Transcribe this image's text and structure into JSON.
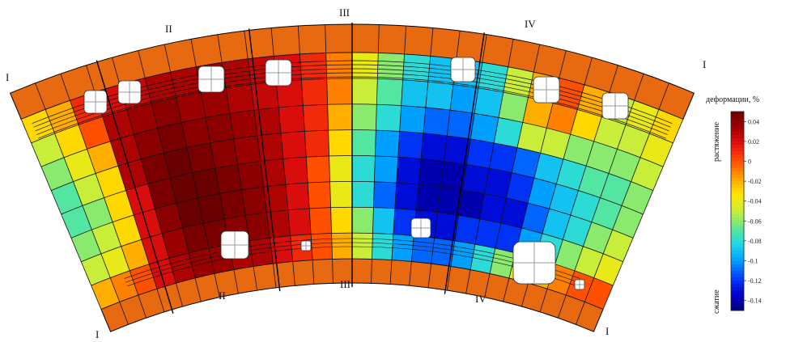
{
  "section_labels": {
    "I": "I",
    "II": "II",
    "III": "III",
    "IV": "IV"
  },
  "colorbar": {
    "title": "деформации, %",
    "top_side_label": "растяжение",
    "bottom_side_label": "сжатие",
    "min": -0.15,
    "max": 0.05,
    "ticks": [
      "0.04",
      "0.02",
      "0",
      "-0.02",
      "-0.04",
      "-0.06",
      "-0.08",
      "-0.1",
      "-0.12",
      "-0.14"
    ],
    "tick_values": [
      0.04,
      0.02,
      0,
      -0.02,
      -0.04,
      -0.06,
      -0.08,
      -0.1,
      -0.12,
      -0.14
    ],
    "colors": [
      "#00007a",
      "#0000d0",
      "#0040ff",
      "#00a0ff",
      "#20d8e8",
      "#60e890",
      "#c8ee3a",
      "#ffe600",
      "#ffa000",
      "#ff5000",
      "#e81010",
      "#a00000",
      "#6a0000"
    ]
  },
  "strain_field": {
    "columns": 26,
    "rows": 8,
    "values": [
      [
        -0.03,
        -0.02,
        0.01,
        0.02,
        0.025,
        0.03,
        0.03,
        0.035,
        0.03,
        0.025,
        0.02,
        0.01,
        -0.01,
        -0.04,
        -0.06,
        -0.08,
        -0.09,
        -0.09,
        -0.08,
        -0.05,
        -0.02,
        0.0,
        -0.02,
        -0.05,
        -0.04,
        -0.03
      ],
      [
        -0.05,
        -0.03,
        0.0,
        0.03,
        0.035,
        0.04,
        0.035,
        0.035,
        0.03,
        0.025,
        0.02,
        0.01,
        -0.01,
        -0.05,
        -0.07,
        -0.09,
        -0.09,
        -0.1,
        -0.09,
        -0.06,
        -0.02,
        -0.01,
        -0.03,
        -0.05,
        -0.05,
        -0.04
      ],
      [
        -0.06,
        -0.04,
        -0.02,
        0.03,
        0.04,
        0.045,
        0.04,
        0.04,
        0.035,
        0.03,
        0.02,
        0.01,
        -0.02,
        -0.06,
        -0.08,
        -0.1,
        -0.11,
        -0.11,
        -0.1,
        -0.08,
        -0.05,
        -0.05,
        -0.06,
        -0.06,
        -0.06,
        -0.05
      ],
      [
        -0.07,
        -0.05,
        -0.03,
        0.03,
        0.045,
        0.05,
        0.045,
        0.04,
        0.035,
        0.03,
        0.02,
        0.01,
        -0.03,
        -0.07,
        -0.1,
        -0.12,
        -0.13,
        -0.13,
        -0.12,
        -0.12,
        -0.11,
        -0.09,
        -0.08,
        -0.07,
        -0.07,
        -0.06
      ],
      [
        -0.07,
        -0.06,
        -0.03,
        0.02,
        0.045,
        0.05,
        0.05,
        0.045,
        0.04,
        0.03,
        0.02,
        0.0,
        -0.04,
        -0.08,
        -0.1,
        -0.13,
        -0.14,
        -0.14,
        -0.13,
        -0.13,
        -0.12,
        -0.1,
        -0.09,
        -0.08,
        -0.07,
        -0.06
      ],
      [
        -0.06,
        -0.05,
        -0.03,
        0.02,
        0.04,
        0.05,
        0.05,
        0.045,
        0.04,
        0.03,
        0.02,
        0.0,
        -0.04,
        -0.08,
        -0.11,
        -0.13,
        -0.14,
        -0.14,
        -0.14,
        -0.13,
        -0.13,
        -0.11,
        -0.09,
        -0.08,
        -0.06,
        -0.05
      ],
      [
        -0.05,
        -0.04,
        -0.02,
        0.02,
        0.035,
        0.045,
        0.045,
        0.04,
        0.04,
        0.03,
        0.02,
        0.0,
        -0.03,
        -0.06,
        -0.09,
        -0.12,
        -0.13,
        -0.13,
        -0.12,
        -0.12,
        -0.12,
        -0.1,
        -0.08,
        -0.06,
        -0.05,
        -0.04
      ],
      [
        -0.02,
        -0.01,
        0.0,
        0.02,
        0.03,
        0.035,
        0.035,
        0.03,
        0.03,
        0.02,
        0.01,
        0.0,
        -0.02,
        -0.05,
        -0.08,
        -0.1,
        -0.11,
        -0.11,
        -0.1,
        -0.08,
        -0.06,
        -0.04,
        -0.02,
        -0.01,
        0.0,
        0.0
      ]
    ]
  }
}
